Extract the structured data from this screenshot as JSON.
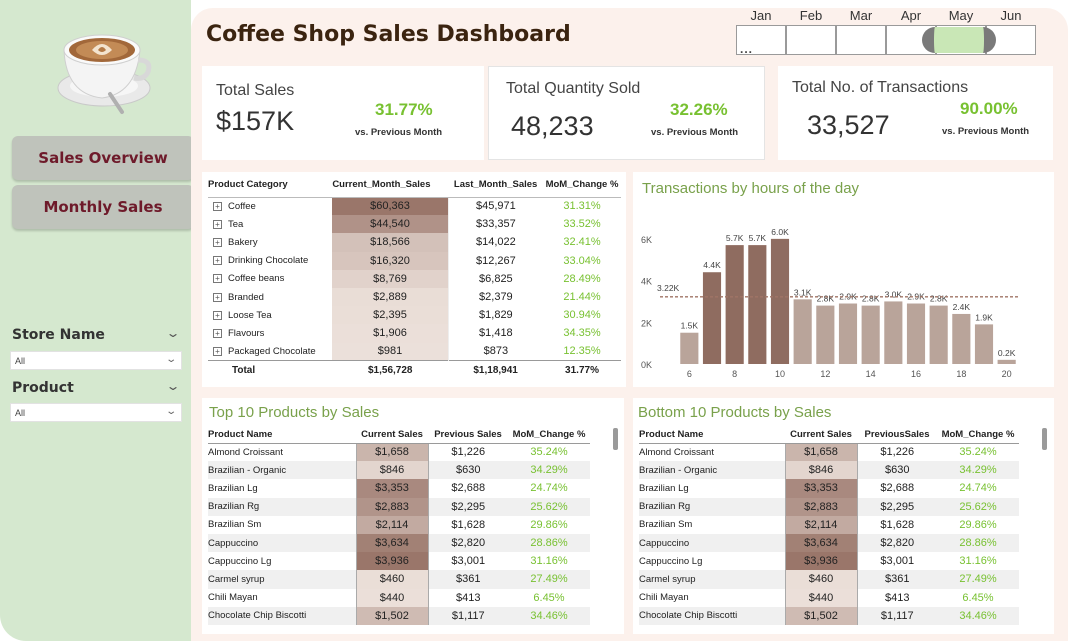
{
  "header": {
    "title": "Coffee Shop Sales Dashboard"
  },
  "sidebar": {
    "nav": [
      {
        "label": "Sales Overview"
      },
      {
        "label": "Monthly Sales"
      }
    ],
    "filters": [
      {
        "title": "Store Name",
        "value": "All"
      },
      {
        "title": "Product",
        "value": "All"
      }
    ]
  },
  "month_slicer": {
    "months": [
      "Jan",
      "Feb",
      "Mar",
      "Apr",
      "May",
      "Jun"
    ],
    "selected": "May",
    "more": "..."
  },
  "kpis": [
    {
      "title": "Total Sales",
      "value": "$157K",
      "change": "31.77%",
      "note": "vs. Previous Month"
    },
    {
      "title": "Total Quantity Sold",
      "value": "48,233",
      "change": "32.26%",
      "note": "vs. Previous Month"
    },
    {
      "title": "Total No. of Transactions",
      "value": "33,527",
      "change": "90.00%",
      "note": "vs. Previous Month"
    }
  ],
  "category_table": {
    "headers": [
      "Product Category",
      "Current_Month_Sales",
      "Last_Month_Sales",
      "MoM_Change %"
    ],
    "rows": [
      {
        "name": "Coffee",
        "current": "$60,363",
        "last": "$45,971",
        "mom": "31.31%",
        "shade": 1.0
      },
      {
        "name": "Tea",
        "current": "$44,540",
        "last": "$33,357",
        "mom": "33.52%",
        "shade": 0.74
      },
      {
        "name": "Bakery",
        "current": "$18,566",
        "last": "$14,022",
        "mom": "32.41%",
        "shade": 0.31
      },
      {
        "name": "Drinking Chocolate",
        "current": "$16,320",
        "last": "$12,267",
        "mom": "33.04%",
        "shade": 0.27
      },
      {
        "name": "Coffee beans",
        "current": "$8,769",
        "last": "$6,825",
        "mom": "28.49%",
        "shade": 0.15
      },
      {
        "name": "Branded",
        "current": "$2,889",
        "last": "$2,379",
        "mom": "21.44%",
        "shade": 0.05
      },
      {
        "name": "Loose Tea",
        "current": "$2,395",
        "last": "$1,829",
        "mom": "30.94%",
        "shade": 0.04
      },
      {
        "name": "Flavours",
        "current": "$1,906",
        "last": "$1,418",
        "mom": "34.35%",
        "shade": 0.03
      },
      {
        "name": "Packaged Chocolate",
        "current": "$981",
        "last": "$873",
        "mom": "12.35%",
        "shade": 0.02
      }
    ],
    "total": {
      "name": "Total",
      "current": "$1,56,728",
      "last": "$1,18,941",
      "mom": "31.77%"
    }
  },
  "chart_data": {
    "type": "bar",
    "title": "Transactions by hours of the day",
    "x": [
      6,
      7,
      8,
      9,
      10,
      11,
      12,
      13,
      14,
      15,
      16,
      17,
      18,
      19,
      20
    ],
    "values": [
      1500,
      4400,
      5700,
      5700,
      6000,
      3100,
      2800,
      2900,
      2800,
      3000,
      2900,
      2800,
      2400,
      1900,
      200
    ],
    "labels": [
      "1.5K",
      "4.4K",
      "5.7K",
      "5.7K",
      "6.0K",
      "3.1K",
      "2.8K",
      "2.9K",
      "2.8K",
      "3.0K",
      "2.9K",
      "2.8K",
      "2.4K",
      "1.9K",
      "0.2K"
    ],
    "xticks": [
      6,
      8,
      10,
      12,
      14,
      16,
      18,
      20
    ],
    "yticks": [
      0,
      2000,
      4000,
      6000
    ],
    "ytick_labels": [
      "0K",
      "2K",
      "4K",
      "6K"
    ],
    "ylim": [
      0,
      7000
    ],
    "average": 3220,
    "average_label": "3.22K",
    "colors": {
      "bar": "#b9a49a",
      "bar_dark": "#8f6c60",
      "avg_line": "#a07466"
    }
  },
  "top_products": {
    "title": "Top 10 Products by Sales",
    "headers": [
      "Product Name",
      "Current Sales",
      "Previous Sales",
      "MoM_Change %"
    ],
    "rows": [
      {
        "name": "Almond Croissant",
        "current": "$1,658",
        "previous": "$1,226",
        "mom": "35.24%",
        "shade": 0.42
      },
      {
        "name": "Brazilian - Organic",
        "current": "$846",
        "previous": "$630",
        "mom": "34.29%",
        "shade": 0.12
      },
      {
        "name": "Brazilian Lg",
        "current": "$3,353",
        "previous": "$2,688",
        "mom": "24.74%",
        "shade": 0.82
      },
      {
        "name": "Brazilian Rg",
        "current": "$2,883",
        "previous": "$2,295",
        "mom": "25.62%",
        "shade": 0.72
      },
      {
        "name": "Brazilian Sm",
        "current": "$2,114",
        "previous": "$1,628",
        "mom": "29.86%",
        "shade": 0.52
      },
      {
        "name": "Cappuccino",
        "current": "$3,634",
        "previous": "$2,820",
        "mom": "28.86%",
        "shade": 0.9
      },
      {
        "name": "Cappuccino Lg",
        "current": "$3,936",
        "previous": "$3,001",
        "mom": "31.16%",
        "shade": 1.0
      },
      {
        "name": "Carmel syrup",
        "current": "$460",
        "previous": "$361",
        "mom": "27.49%",
        "shade": 0.04
      },
      {
        "name": "Chili Mayan",
        "current": "$440",
        "previous": "$413",
        "mom": "6.45%",
        "shade": 0.03
      },
      {
        "name": "Chocolate Chip Biscotti",
        "current": "$1,502",
        "previous": "$1,117",
        "mom": "34.46%",
        "shade": 0.36
      }
    ]
  },
  "bottom_products": {
    "title": "Bottom 10 Products by Sales",
    "headers": [
      "Product Name",
      "Current Sales",
      "PreviousSales",
      "MoM_Change %"
    ],
    "rows": [
      {
        "name": "Almond Croissant",
        "current": "$1,658",
        "previous": "$1,226",
        "mom": "35.24%",
        "shade": 0.42
      },
      {
        "name": "Brazilian - Organic",
        "current": "$846",
        "previous": "$630",
        "mom": "34.29%",
        "shade": 0.12
      },
      {
        "name": "Brazilian Lg",
        "current": "$3,353",
        "previous": "$2,688",
        "mom": "24.74%",
        "shade": 0.82
      },
      {
        "name": "Brazilian Rg",
        "current": "$2,883",
        "previous": "$2,295",
        "mom": "25.62%",
        "shade": 0.72
      },
      {
        "name": "Brazilian Sm",
        "current": "$2,114",
        "previous": "$1,628",
        "mom": "29.86%",
        "shade": 0.52
      },
      {
        "name": "Cappuccino",
        "current": "$3,634",
        "previous": "$2,820",
        "mom": "28.86%",
        "shade": 0.9
      },
      {
        "name": "Cappuccino Lg",
        "current": "$3,936",
        "previous": "$3,001",
        "mom": "31.16%",
        "shade": 1.0
      },
      {
        "name": "Carmel syrup",
        "current": "$460",
        "previous": "$361",
        "mom": "27.49%",
        "shade": 0.04
      },
      {
        "name": "Chili Mayan",
        "current": "$440",
        "previous": "$413",
        "mom": "6.45%",
        "shade": 0.03
      },
      {
        "name": "Chocolate Chip Biscotti",
        "current": "$1,502",
        "previous": "$1,117",
        "mom": "34.46%",
        "shade": 0.36
      }
    ]
  },
  "colors": {
    "accent_green": "#78c131",
    "title_green": "#79a14b",
    "nav_text": "#6e1a2a",
    "sidebar_bg": "#d5e8cf",
    "main_bg": "#fcf1ec",
    "shade_low": "#ede2dc",
    "shade_high": "#9a766a"
  }
}
